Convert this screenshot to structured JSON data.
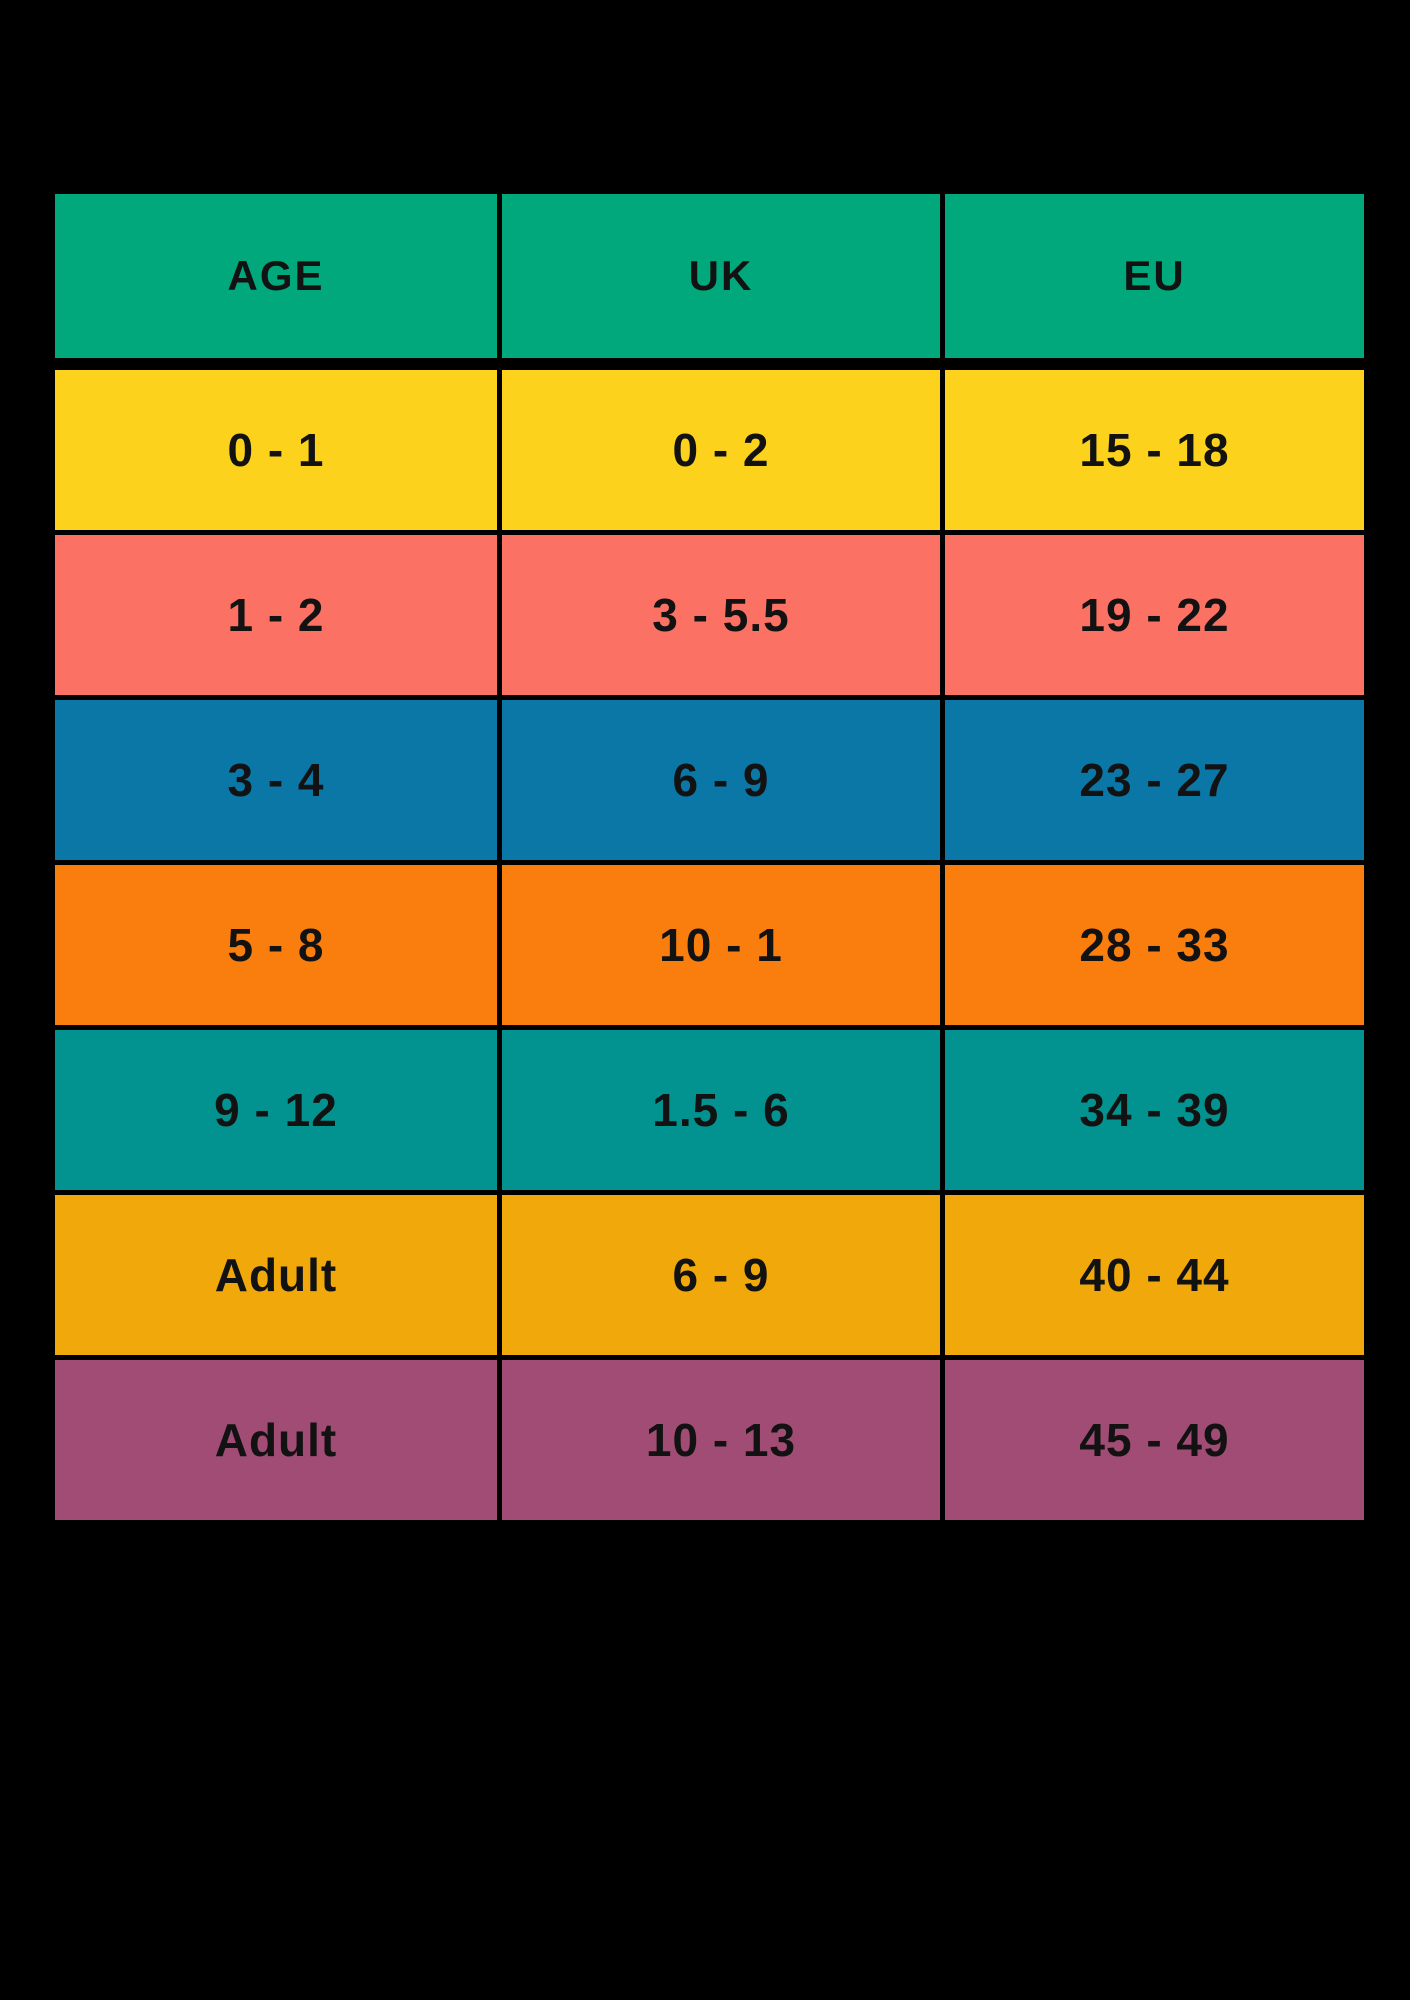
{
  "colors": {
    "background": "#000000",
    "text": "#121212",
    "header_bg": "#00A87B"
  },
  "table": {
    "headers": [
      "AGE",
      "UK",
      "EU"
    ],
    "rows": [
      {
        "color": "#FCD21D",
        "cells": [
          "0 - 1",
          "0 - 2",
          "15 - 18"
        ]
      },
      {
        "color": "#FB7164",
        "cells": [
          "1 - 2",
          "3 - 5.5",
          "19 - 22"
        ]
      },
      {
        "color": "#0A77A6",
        "cells": [
          "3 - 4",
          "6 - 9",
          "23 - 27"
        ]
      },
      {
        "color": "#F97E0E",
        "cells": [
          "5 - 8",
          "10 - 1",
          "28 - 33"
        ]
      },
      {
        "color": "#029390",
        "cells": [
          "9 - 12",
          "1.5 - 6",
          "34 - 39"
        ]
      },
      {
        "color": "#F0A80B",
        "cells": [
          "Adult",
          "6 - 9",
          "40 - 44"
        ]
      },
      {
        "color": "#A04C74",
        "cells": [
          "Adult",
          "10 - 13",
          "45 - 49"
        ]
      }
    ]
  },
  "chart_data": {
    "type": "table",
    "title": "",
    "columns": [
      "AGE",
      "UK",
      "EU"
    ],
    "rows": [
      [
        "0 - 1",
        "0 - 2",
        "15 - 18"
      ],
      [
        "1 - 2",
        "3 - 5.5",
        "19 - 22"
      ],
      [
        "3 - 4",
        "6 - 9",
        "23 - 27"
      ],
      [
        "5 - 8",
        "10 - 1",
        "28 - 33"
      ],
      [
        "9 - 12",
        "1.5 - 6",
        "34 - 39"
      ],
      [
        "Adult",
        "6 - 9",
        "40 - 44"
      ],
      [
        "Adult",
        "10 - 13",
        "45 - 49"
      ]
    ],
    "row_colors": [
      "#FCD21D",
      "#FB7164",
      "#0A77A6",
      "#F97E0E",
      "#029390",
      "#F0A80B",
      "#A04C74"
    ],
    "header_color": "#00A87B",
    "layout": "3 equal columns, black grid lines on black background"
  }
}
